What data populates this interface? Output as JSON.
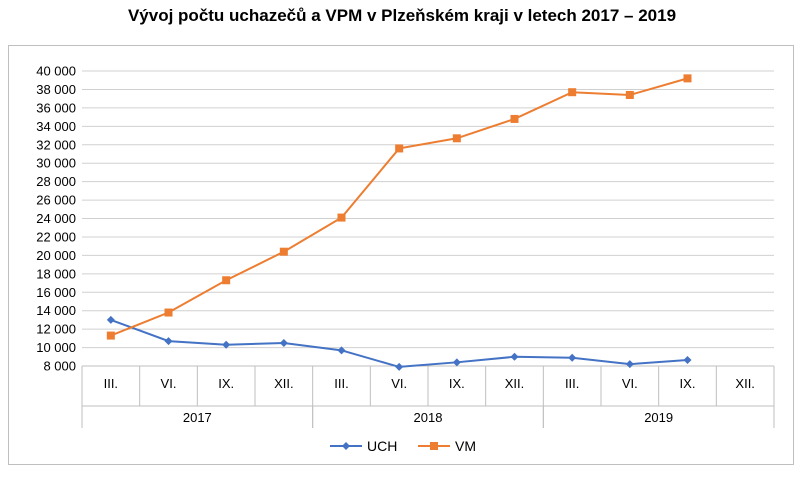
{
  "title": "Vývoj počtu uchazečů a VPM v Plzeňském kraji v letech 2017 – 2019",
  "chart_data": {
    "type": "line",
    "title": "Vývoj počtu uchazečů a VPM v Plzeňském kraji v letech 2017 – 2019",
    "categories": [
      "III.",
      "VI.",
      "IX.",
      "XII.",
      "III.",
      "VI.",
      "IX.",
      "XII.",
      "III.",
      "VI.",
      "IX.",
      "XII."
    ],
    "groups": [
      {
        "label": "2017",
        "span": 4
      },
      {
        "label": "2018",
        "span": 4
      },
      {
        "label": "2019",
        "span": 4
      }
    ],
    "ylim": [
      8000,
      40000
    ],
    "yticks": [
      8000,
      10000,
      12000,
      14000,
      16000,
      18000,
      20000,
      22000,
      24000,
      26000,
      28000,
      30000,
      32000,
      34000,
      36000,
      38000,
      40000
    ],
    "ytick_labels": [
      "8 000",
      "10 000",
      "12 000",
      "14 000",
      "16 000",
      "18 000",
      "20 000",
      "22 000",
      "24 000",
      "26 000",
      "28 000",
      "30 000",
      "32 000",
      "34 000",
      "36 000",
      "38 000",
      "40 000"
    ],
    "grid": true,
    "legend_position": "bottom",
    "series": [
      {
        "name": "UCH",
        "color": "#4472c4",
        "marker": "diamond",
        "values": [
          13000,
          10700,
          10300,
          10500,
          9700,
          7900,
          8400,
          9000,
          8900,
          8200,
          8650,
          null
        ]
      },
      {
        "name": "VM",
        "color": "#ed7d31",
        "marker": "square",
        "values": [
          11300,
          13800,
          17300,
          20400,
          24100,
          31600,
          32700,
          34800,
          37700,
          37400,
          39200,
          null
        ]
      }
    ]
  }
}
